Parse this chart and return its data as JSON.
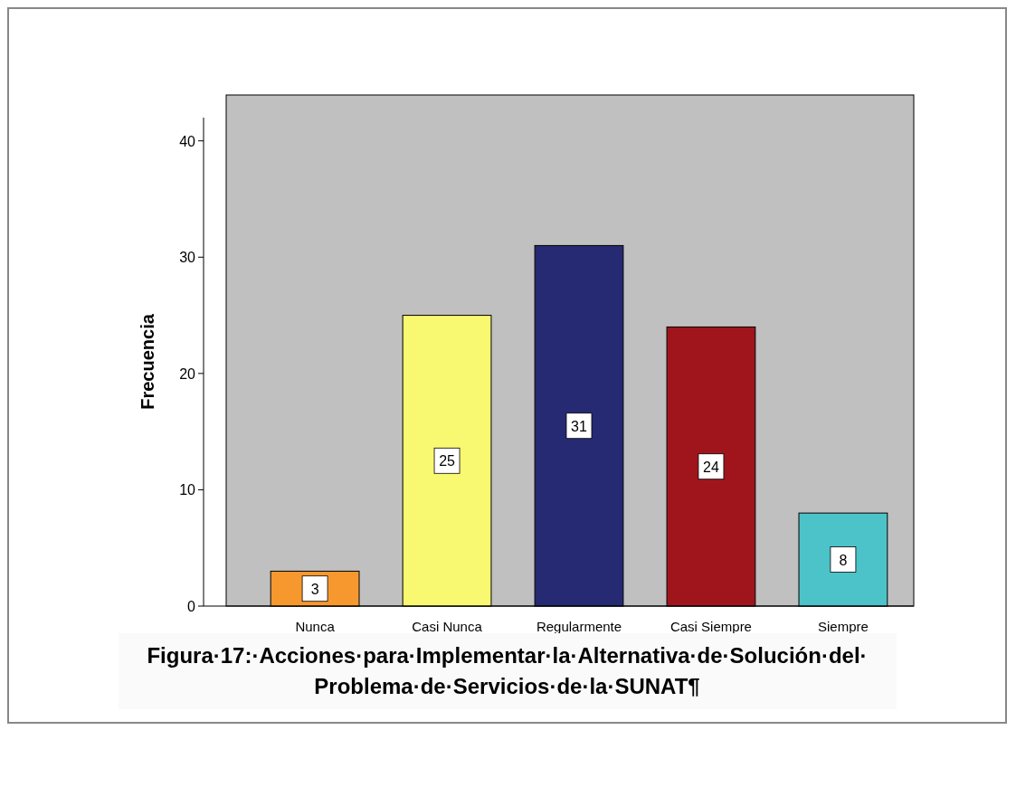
{
  "chart_data": {
    "type": "bar",
    "title": "Figura·17:·Acciones·para·Implementar·la·Alternativa·de·Solución·del·Problema·de·Servicios·de·la·SUNAT¶",
    "ylabel": "Frecuencia",
    "categories": [
      "Nunca",
      "Casi Nunca",
      "Regularmente",
      "Casi Siempre",
      "Siempre"
    ],
    "values": [
      3,
      25,
      31,
      24,
      8
    ],
    "colors": [
      "#f7982f",
      "#f9f871",
      "#262a72",
      "#a0151b",
      "#4cc3c8"
    ],
    "ylim": [
      0,
      42
    ],
    "yticks": [
      0,
      10,
      20,
      30,
      40
    ],
    "data_labels": true,
    "grid": false
  }
}
